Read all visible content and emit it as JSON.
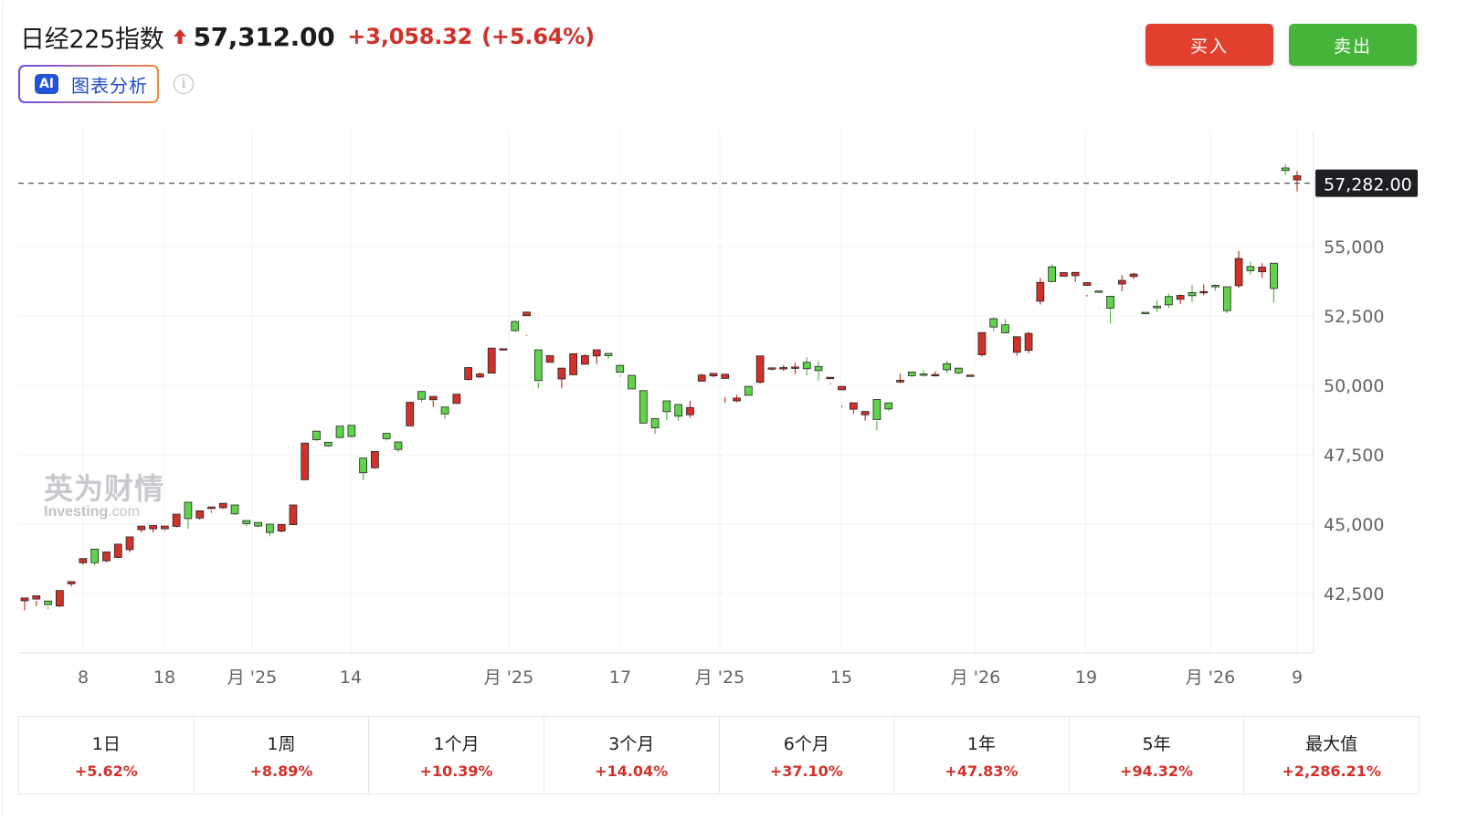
{
  "header": {
    "title": "日经225指数",
    "price": "57,312.00",
    "change": "+3,058.32",
    "change_pct": "(+5.64%)",
    "direction_icon": "arrow-up-icon",
    "up_color": "#d0322a"
  },
  "ai_button": {
    "badge": "AI",
    "label": "图表分析"
  },
  "info_icon": {
    "glyph": "i",
    "icon": "info-icon"
  },
  "actions": {
    "buy_label": "买入",
    "sell_label": "卖出",
    "buy_color": "#e2402f",
    "sell_color": "#46b43a"
  },
  "watermark": {
    "cn": "英为财情",
    "en": "Investing",
    "suffix": ".com"
  },
  "chart_data": {
    "type": "candlestick",
    "y_ticks": [
      "55,000",
      "52,500",
      "50,000",
      "47,500",
      "45,000",
      "42,500"
    ],
    "y_tick_values": [
      55000,
      52500,
      50000,
      47500,
      45000,
      42500
    ],
    "ylim": [
      40400,
      58800
    ],
    "x_ticks": [
      "8",
      "18",
      "月 '25",
      "14",
      "月 '25",
      "17",
      "月 '25",
      "15",
      "月 '26",
      "19",
      "月 '26",
      "9"
    ],
    "current_price_label": "57,282.00",
    "current_price": 57282,
    "up_color": "#d0322a",
    "down_color": "#5fd34a",
    "grid": true,
    "candles": [
      [
        42240,
        42340,
        41890,
        42300
      ],
      [
        42300,
        42420,
        42050,
        42240
      ],
      [
        42230,
        42100,
        41940,
        42030
      ],
      [
        42050,
        42610,
        42010,
        42580
      ],
      [
        42850,
        42930,
        42750,
        42880
      ],
      [
        43610,
        43760,
        43540,
        43710
      ],
      [
        44100,
        43610,
        43500,
        43660
      ],
      [
        43680,
        44000,
        43620,
        43910
      ],
      [
        43800,
        44280,
        43770,
        44240
      ],
      [
        44080,
        44540,
        43990,
        44080
      ],
      [
        44800,
        44930,
        44700,
        44830
      ],
      [
        44830,
        44950,
        44700,
        44910
      ],
      [
        44830,
        44930,
        44740,
        44770
      ],
      [
        44920,
        45360,
        44880,
        45290
      ],
      [
        45790,
        45200,
        44830,
        45300
      ],
      [
        45220,
        45480,
        45150,
        45410
      ],
      [
        45560,
        45620,
        45410,
        45490
      ],
      [
        45590,
        45750,
        45550,
        45700
      ],
      [
        45690,
        45370,
        45320,
        45420
      ],
      [
        45130,
        45020,
        44930,
        45050
      ],
      [
        45060,
        44930,
        44890,
        44990
      ],
      [
        45000,
        44700,
        44560,
        44720
      ],
      [
        44750,
        44990,
        44700,
        44940
      ],
      [
        44980,
        45690,
        44960,
        45680
      ],
      [
        46600,
        47920,
        46590,
        47920
      ],
      [
        48350,
        48040,
        47990,
        48050
      ],
      [
        47950,
        47820,
        47780,
        47870
      ],
      [
        48530,
        48120,
        48080,
        48450
      ],
      [
        48560,
        48160,
        48120,
        48170
      ],
      [
        47380,
        46850,
        46580,
        46880
      ],
      [
        47030,
        47620,
        46990,
        47620
      ],
      [
        48270,
        48080,
        48010,
        48190
      ],
      [
        47960,
        47690,
        47600,
        47740
      ],
      [
        48540,
        49390,
        48530,
        49380
      ],
      [
        49780,
        49500,
        49400,
        49620
      ],
      [
        49480,
        49600,
        49220,
        49450
      ],
      [
        49220,
        48970,
        48790,
        49000
      ],
      [
        49350,
        49680,
        49330,
        49690
      ],
      [
        50210,
        50640,
        50170,
        50640
      ],
      [
        50300,
        50410,
        50260,
        50470
      ],
      [
        50440,
        51340,
        50430,
        51360
      ],
      [
        51300,
        51320,
        51300,
        51250
      ],
      [
        52300,
        51970,
        51920,
        52320
      ],
      [
        52510,
        52640,
        51820,
        51780
      ],
      [
        51280,
        50170,
        49890,
        50110
      ],
      [
        50830,
        51070,
        51050,
        51000
      ],
      [
        50230,
        50620,
        49890,
        50440
      ],
      [
        50380,
        51140,
        50400,
        50780
      ],
      [
        50760,
        51070,
        50960,
        51120
      ],
      [
        51060,
        51280,
        50760,
        51200
      ],
      [
        51150,
        51070,
        50960,
        51150
      ],
      [
        50720,
        50470,
        50310,
        50370
      ],
      [
        50360,
        49870,
        49900,
        50040
      ],
      [
        49810,
        48640,
        48670,
        49060
      ],
      [
        48800,
        48470,
        48240,
        48460
      ],
      [
        49440,
        49050,
        48740,
        49120
      ],
      [
        49310,
        48890,
        48720,
        48970
      ],
      [
        48940,
        49200,
        48830,
        49440
      ],
      [
        50150,
        50370,
        50190,
        50420
      ],
      [
        50340,
        50430,
        50290,
        50440
      ],
      [
        50250,
        50400,
        49570,
        49370
      ],
      [
        49440,
        49540,
        49390,
        49660
      ],
      [
        49960,
        49640,
        49740,
        49960
      ],
      [
        50110,
        51060,
        50060,
        51020
      ],
      [
        50610,
        50630,
        50540,
        50570
      ],
      [
        50620,
        50640,
        50520,
        50730
      ],
      [
        50610,
        50660,
        50400,
        50820
      ],
      [
        50830,
        50600,
        50360,
        51010
      ],
      [
        50680,
        50530,
        50170,
        50880
      ],
      [
        50290,
        50290,
        50030,
        50080
      ],
      [
        49840,
        49960,
        49200,
        49270
      ],
      [
        49140,
        49370,
        48970,
        49330
      ],
      [
        48940,
        49060,
        48730,
        48960
      ],
      [
        49490,
        48770,
        48390,
        48720
      ],
      [
        49370,
        49150,
        49090,
        49380
      ],
      [
        50120,
        50180,
        50080,
        50420
      ],
      [
        50480,
        50350,
        50300,
        50430
      ],
      [
        50410,
        50380,
        50320,
        50540
      ],
      [
        50390,
        50390,
        50320,
        50500
      ],
      [
        50780,
        50560,
        50450,
        50890
      ],
      [
        50620,
        50450,
        50390,
        50570
      ],
      [
        50360,
        50370,
        50320,
        50380
      ],
      [
        51100,
        51900,
        51040,
        51920
      ],
      [
        52400,
        52100,
        51950,
        52460
      ],
      [
        52180,
        51890,
        51900,
        52390
      ],
      [
        51190,
        51750,
        51070,
        51710
      ],
      [
        51260,
        51870,
        51150,
        51930
      ],
      [
        53030,
        53710,
        52910,
        53870
      ],
      [
        54270,
        53740,
        53720,
        54360
      ],
      [
        53930,
        54060,
        54050,
        54070
      ],
      [
        53950,
        54070,
        53720,
        53950
      ],
      [
        53600,
        53700,
        53200,
        53260
      ],
      [
        53400,
        53390,
        52760,
        52780
      ],
      [
        53210,
        52780,
        52240,
        52790
      ],
      [
        53650,
        53780,
        53390,
        53970
      ],
      [
        53920,
        54010,
        53830,
        54050
      ],
      [
        52630,
        52610,
        52560,
        52620
      ],
      [
        52850,
        52790,
        52630,
        53070
      ],
      [
        53200,
        52900,
        52780,
        53310
      ],
      [
        53100,
        53240,
        52930,
        53270
      ],
      [
        53340,
        53230,
        53000,
        53610
      ],
      [
        53350,
        53380,
        53240,
        53630
      ],
      [
        53600,
        53550,
        53400,
        53640
      ],
      [
        53550,
        52690,
        52600,
        53550
      ],
      [
        53590,
        54570,
        53510,
        54840
      ],
      [
        54280,
        54130,
        53990,
        54460
      ],
      [
        54090,
        54260,
        53870,
        54400
      ],
      [
        54400,
        53490,
        52990,
        54360
      ],
      [
        57830,
        57740,
        57580,
        57960
      ],
      [
        57400,
        57550,
        56990,
        57720
      ]
    ]
  },
  "periods": [
    {
      "label": "1日",
      "value": "+5.62%"
    },
    {
      "label": "1周",
      "value": "+8.89%"
    },
    {
      "label": "1个月",
      "value": "+10.39%"
    },
    {
      "label": "3个月",
      "value": "+14.04%"
    },
    {
      "label": "6个月",
      "value": "+37.10%"
    },
    {
      "label": "1年",
      "value": "+47.83%"
    },
    {
      "label": "5年",
      "value": "+94.32%"
    },
    {
      "label": "最大值",
      "value": "+2,286.21%"
    }
  ]
}
